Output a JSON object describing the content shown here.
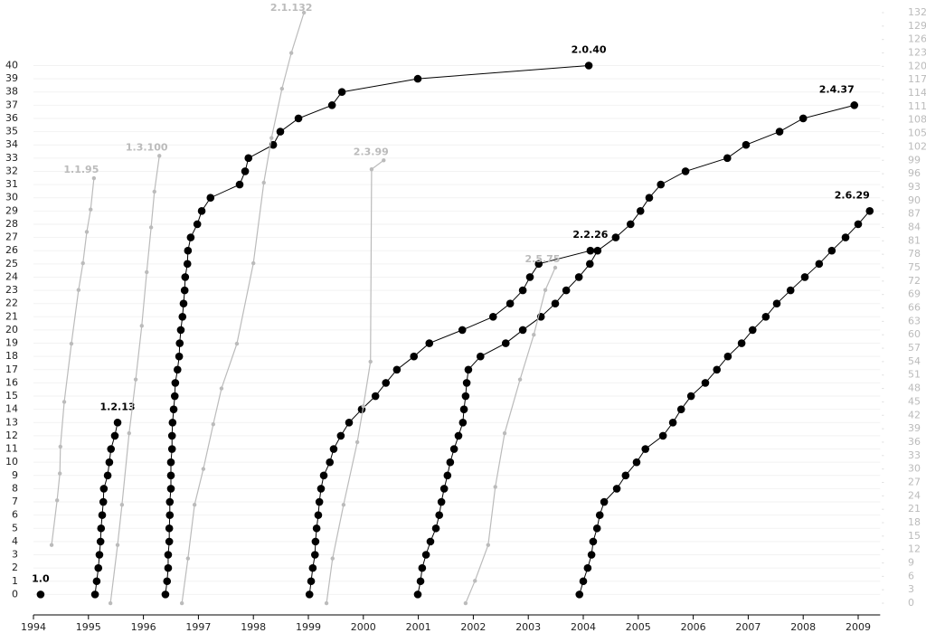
{
  "chart_data": {
    "type": "line",
    "xlim": [
      1994,
      2009.4
    ],
    "xticks": [
      1994,
      1995,
      1996,
      1997,
      1998,
      1999,
      2000,
      2001,
      2002,
      2003,
      2004,
      2005,
      2006,
      2007,
      2008,
      2009
    ],
    "ylim": [
      -1,
      44
    ],
    "yticks": [
      0,
      1,
      2,
      3,
      4,
      5,
      6,
      7,
      8,
      9,
      10,
      11,
      12,
      13,
      14,
      15,
      16,
      17,
      18,
      19,
      20,
      21,
      22,
      23,
      24,
      25,
      26,
      27,
      28,
      29,
      30,
      31,
      32,
      33,
      34,
      35,
      36,
      37,
      38,
      39,
      40
    ],
    "y2lim": [
      -1,
      132
    ],
    "y2ticks": [
      0,
      3,
      6,
      9,
      12,
      15,
      18,
      21,
      24,
      27,
      30,
      33,
      36,
      39,
      42,
      45,
      48,
      51,
      54,
      57,
      60,
      63,
      66,
      69,
      72,
      75,
      78,
      81,
      84,
      87,
      90,
      93,
      96,
      99,
      102,
      105,
      108,
      111,
      114,
      117,
      120,
      123,
      126,
      129,
      132
    ],
    "grid": true,
    "series": [
      {
        "name": "1.0",
        "color": "#000000",
        "x": [
          1994.13
        ],
        "values": [
          0
        ]
      },
      {
        "name": "1.2.13",
        "color": "#000000",
        "x": [
          1995.12,
          1995.15,
          1995.18,
          1995.2,
          1995.22,
          1995.23,
          1995.25,
          1995.27,
          1995.28,
          1995.35,
          1995.38,
          1995.41,
          1995.48,
          1995.53
        ],
        "values": [
          0,
          1,
          2,
          3,
          4,
          5,
          6,
          7,
          8,
          9,
          10,
          11,
          12,
          13
        ]
      },
      {
        "name": "2.0.40",
        "color": "#000000",
        "x": [
          1996.4,
          1996.43,
          1996.45,
          1996.45,
          1996.47,
          1996.47,
          1996.48,
          1996.48,
          1996.5,
          1996.5,
          1996.5,
          1996.52,
          1996.52,
          1996.53,
          1996.55,
          1996.57,
          1996.58,
          1996.62,
          1996.65,
          1996.66,
          1996.68,
          1996.71,
          1996.73,
          1996.75,
          1996.76,
          1996.8,
          1996.81,
          1996.86,
          1996.98,
          1997.06,
          1997.22,
          1997.75,
          1997.85,
          1997.91,
          1998.36,
          1998.49,
          1998.82,
          1999.43,
          1999.61,
          2000.99,
          2004.1
        ],
        "values": [
          0,
          1,
          2,
          3,
          4,
          5,
          6,
          7,
          8,
          9,
          10,
          11,
          12,
          13,
          14,
          15,
          16,
          17,
          18,
          19,
          20,
          21,
          22,
          23,
          24,
          25,
          26,
          27,
          28,
          29,
          30,
          31,
          32,
          33,
          34,
          35,
          36,
          37,
          38,
          39,
          40
        ]
      },
      {
        "name": "2.2.26",
        "color": "#000000",
        "x": [
          1999.02,
          1999.05,
          1999.08,
          1999.12,
          1999.13,
          1999.15,
          1999.18,
          1999.2,
          1999.23,
          1999.28,
          1999.39,
          1999.46,
          1999.59,
          1999.74,
          1999.97,
          2000.22,
          2000.41,
          2000.61,
          2000.92,
          2001.2,
          2001.8,
          2002.36,
          2002.67,
          2002.9,
          2003.03,
          2003.19,
          2004.13
        ],
        "values": [
          0,
          1,
          2,
          3,
          4,
          5,
          6,
          7,
          8,
          9,
          10,
          11,
          12,
          13,
          14,
          15,
          16,
          17,
          18,
          19,
          20,
          21,
          22,
          23,
          24,
          25,
          26
        ]
      },
      {
        "name": "2.4.37",
        "color": "#000000",
        "x": [
          2000.99,
          2001.04,
          2001.07,
          2001.14,
          2001.22,
          2001.32,
          2001.38,
          2001.42,
          2001.47,
          2001.53,
          2001.58,
          2001.65,
          2001.73,
          2001.81,
          2001.83,
          2001.86,
          2001.88,
          2001.91,
          2002.13,
          2002.59,
          2002.9,
          2003.23,
          2003.49,
          2003.69,
          2003.92,
          2004.12,
          2004.26,
          2004.59,
          2004.86,
          2005.04,
          2005.2,
          2005.41,
          2005.86,
          2006.62,
          2006.96,
          2007.57,
          2008.0,
          2008.93
        ],
        "values": [
          0,
          1,
          2,
          3,
          4,
          5,
          6,
          7,
          8,
          9,
          10,
          11,
          12,
          13,
          14,
          15,
          16,
          17,
          18,
          19,
          20,
          21,
          22,
          23,
          24,
          25,
          26,
          27,
          28,
          29,
          30,
          31,
          32,
          33,
          34,
          35,
          36,
          37
        ]
      },
      {
        "name": "2.6.29",
        "color": "#000000",
        "x": [
          2003.93,
          2004.0,
          2004.08,
          2004.15,
          2004.18,
          2004.25,
          2004.3,
          2004.38,
          2004.61,
          2004.77,
          2004.97,
          2005.13,
          2005.45,
          2005.63,
          2005.78,
          2005.96,
          2006.22,
          2006.43,
          2006.63,
          2006.88,
          2007.08,
          2007.32,
          2007.52,
          2007.77,
          2008.03,
          2008.29,
          2008.52,
          2008.77,
          2009.0,
          2009.21
        ],
        "values": [
          0,
          1,
          2,
          3,
          4,
          5,
          6,
          7,
          8,
          9,
          10,
          11,
          12,
          13,
          14,
          15,
          16,
          17,
          18,
          19,
          20,
          21,
          22,
          23,
          24,
          25,
          26,
          27,
          28,
          29
        ]
      },
      {
        "name": "1.1.95",
        "color": "#bbbbbb",
        "axis": "y2",
        "x": [
          1994.33,
          1994.43,
          1994.48,
          1994.49,
          1994.56,
          1994.69,
          1994.82,
          1994.9,
          1994.97,
          1995.04,
          1995.1
        ],
        "values": [
          13,
          23,
          29,
          35,
          45,
          58,
          70,
          76,
          83,
          88,
          95
        ]
      },
      {
        "name": "1.3.100",
        "color": "#bbbbbb",
        "axis": "y2",
        "x": [
          1995.4,
          1995.53,
          1995.61,
          1995.74,
          1995.86,
          1995.97,
          1996.06,
          1996.14,
          1996.2,
          1996.29
        ],
        "values": [
          0,
          13,
          22,
          38,
          50,
          62,
          74,
          84,
          92,
          100
        ]
      },
      {
        "name": "2.1.132",
        "color": "#bbbbbb",
        "axis": "y2",
        "x": [
          1996.7,
          1996.81,
          1996.93,
          1997.09,
          1997.27,
          1997.42,
          1997.7,
          1998.0,
          1998.19,
          1998.33,
          1998.52,
          1998.69,
          1998.92
        ],
        "values": [
          0,
          10,
          22,
          30,
          40,
          48,
          58,
          76,
          94,
          104,
          115,
          123,
          132
        ]
      },
      {
        "name": "2.3.99",
        "color": "#bbbbbb",
        "axis": "y2",
        "x": [
          1999.33,
          1999.44,
          1999.64,
          1999.89,
          2000.0,
          2000.13,
          2000.15,
          2000.37
        ],
        "values": [
          0,
          10,
          22,
          36,
          44,
          54,
          97,
          99
        ]
      },
      {
        "name": "2.5.75",
        "color": "#bbbbbb",
        "axis": "y2",
        "x": [
          2001.86,
          2002.03,
          2002.27,
          2002.4,
          2002.57,
          2002.85,
          2003.1,
          2003.31,
          2003.49
        ],
        "values": [
          0,
          5,
          13,
          26,
          38,
          50,
          60,
          70,
          75
        ]
      }
    ]
  }
}
